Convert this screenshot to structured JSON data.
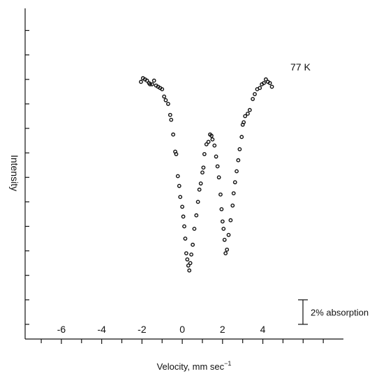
{
  "chart_data": {
    "type": "scatter",
    "title": "",
    "xlabel": "Velocity, mm sec",
    "xlabel_superscript": "−1",
    "ylabel": "Intensity",
    "xlim": [
      -7.8,
      8
    ],
    "xticks_labeled": [
      -6,
      -4,
      -2,
      0,
      2,
      4
    ],
    "xtick_labels": [
      "-6",
      "-4",
      "-2",
      "0",
      "2",
      "4"
    ],
    "y_unit": "relative intensity (%)",
    "ylim": [
      -19.2,
      7.8
    ],
    "ytick_values": [
      6,
      4,
      2,
      0,
      -2,
      -4,
      -6,
      -8,
      -10,
      -12,
      -14,
      -16,
      -18
    ],
    "ytick_labels_shown": false,
    "grid": false,
    "annotations": {
      "temperature_label": "77 K",
      "scale_bar_label": "2% absorption",
      "scale_bar_from": -16,
      "scale_bar_to": -18
    },
    "series": [
      {
        "points": [
          [
            -2.05,
            1.8
          ],
          [
            -1.95,
            2.1
          ],
          [
            -1.85,
            2.0
          ],
          [
            -1.75,
            1.9
          ],
          [
            -1.65,
            1.7
          ],
          [
            -1.6,
            1.6
          ],
          [
            -1.5,
            1.6
          ],
          [
            -1.4,
            1.9
          ],
          [
            -1.3,
            1.5
          ],
          [
            -1.2,
            1.4
          ],
          [
            -1.1,
            1.3
          ],
          [
            -1.0,
            1.2
          ],
          [
            -0.9,
            0.6
          ],
          [
            -0.82,
            0.3
          ],
          [
            -0.7,
            0.0
          ],
          [
            -0.6,
            -0.9
          ],
          [
            -0.55,
            -1.3
          ],
          [
            -0.45,
            -2.5
          ],
          [
            -0.35,
            -3.9
          ],
          [
            -0.3,
            -4.1
          ],
          [
            -0.22,
            -5.9
          ],
          [
            -0.15,
            -6.7
          ],
          [
            -0.1,
            -7.6
          ],
          [
            0.0,
            -8.4
          ],
          [
            0.05,
            -9.2
          ],
          [
            0.1,
            -10.0
          ],
          [
            0.15,
            -11.0
          ],
          [
            0.2,
            -12.2
          ],
          [
            0.25,
            -12.7
          ],
          [
            0.3,
            -13.2
          ],
          [
            0.35,
            -13.6
          ],
          [
            0.4,
            -13.0
          ],
          [
            0.45,
            -12.3
          ],
          [
            0.52,
            -11.5
          ],
          [
            0.6,
            -10.2
          ],
          [
            0.7,
            -9.1
          ],
          [
            0.78,
            -8.0
          ],
          [
            0.85,
            -7.0
          ],
          [
            0.92,
            -6.5
          ],
          [
            1.0,
            -5.6
          ],
          [
            1.05,
            -5.2
          ],
          [
            1.1,
            -4.1
          ],
          [
            1.2,
            -3.3
          ],
          [
            1.3,
            -3.1
          ],
          [
            1.38,
            -2.5
          ],
          [
            1.45,
            -2.6
          ],
          [
            1.5,
            -2.9
          ],
          [
            1.6,
            -3.4
          ],
          [
            1.68,
            -4.3
          ],
          [
            1.75,
            -5.1
          ],
          [
            1.82,
            -6.0
          ],
          [
            1.9,
            -7.4
          ],
          [
            1.95,
            -8.6
          ],
          [
            2.0,
            -9.6
          ],
          [
            2.05,
            -10.2
          ],
          [
            2.1,
            -11.1
          ],
          [
            2.15,
            -12.2
          ],
          [
            2.22,
            -11.9
          ],
          [
            2.3,
            -10.7
          ],
          [
            2.4,
            -9.5
          ],
          [
            2.5,
            -8.3
          ],
          [
            2.55,
            -7.3
          ],
          [
            2.62,
            -6.4
          ],
          [
            2.7,
            -5.5
          ],
          [
            2.78,
            -4.6
          ],
          [
            2.85,
            -3.7
          ],
          [
            2.95,
            -2.7
          ],
          [
            3.0,
            -1.7
          ],
          [
            3.05,
            -1.5
          ],
          [
            3.12,
            -1.0
          ],
          [
            3.25,
            -0.8
          ],
          [
            3.35,
            -0.5
          ],
          [
            3.5,
            0.4
          ],
          [
            3.6,
            0.8
          ],
          [
            3.72,
            1.2
          ],
          [
            3.85,
            1.3
          ],
          [
            3.95,
            1.6
          ],
          [
            4.05,
            1.7
          ],
          [
            4.15,
            2.0
          ],
          [
            4.25,
            1.8
          ],
          [
            4.35,
            1.7
          ],
          [
            4.45,
            1.4
          ]
        ]
      }
    ]
  }
}
